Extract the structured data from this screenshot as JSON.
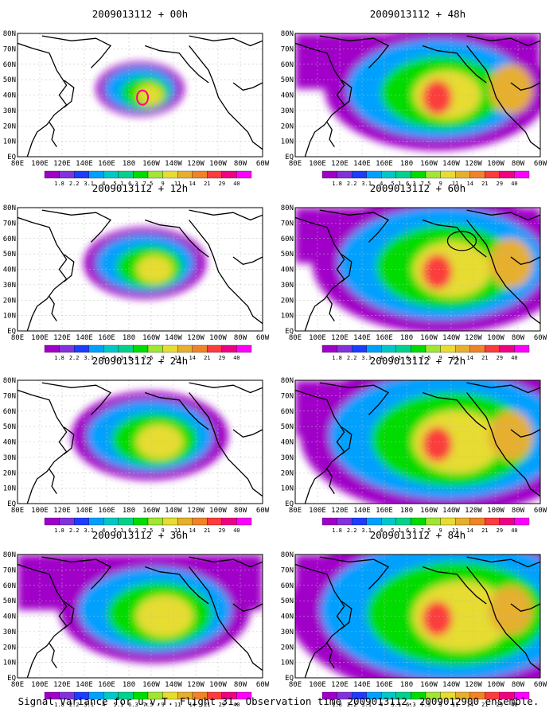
{
  "panels": [
    {
      "title": "2009013112 + 00h",
      "level": 0
    },
    {
      "title": "2009013112 + 48h",
      "level": 4
    },
    {
      "title": "2009013112 + 12h",
      "level": 1
    },
    {
      "title": "2009013112 + 60h",
      "level": 5
    },
    {
      "title": "2009013112 + 24h",
      "level": 2
    },
    {
      "title": "2009013112 + 72h",
      "level": 6
    },
    {
      "title": "2009013112 + 36h",
      "level": 3
    },
    {
      "title": "2009013112 + 84h",
      "level": 7
    }
  ],
  "lat_labels": [
    "80N",
    "70N",
    "60N",
    "50N",
    "40N",
    "30N",
    "20N",
    "10N",
    "EQ"
  ],
  "lon_labels": [
    "80E",
    "100E",
    "120E",
    "140E",
    "160E",
    "180",
    "160W",
    "140W",
    "120W",
    "100W",
    "80W",
    "60W"
  ],
  "colorbar": {
    "labels": [
      "1.8",
      "2.2",
      "3.1",
      "4",
      "5.1",
      "6.3",
      "7.5",
      "9",
      "11",
      "14",
      "21",
      "29",
      "40"
    ],
    "colors": [
      "#a000c8",
      "#8232dc",
      "#1e3cff",
      "#00a0ff",
      "#00c8c8",
      "#00d28c",
      "#00dc00",
      "#a0e632",
      "#e6dc32",
      "#e6af2d",
      "#f08228",
      "#fa3c3c",
      "#f00082",
      "#ff00ff"
    ]
  },
  "caption": "Signal Variance for u,v,T. Flight 31. Observation time 2009013112. 2009012900 ensemble."
}
